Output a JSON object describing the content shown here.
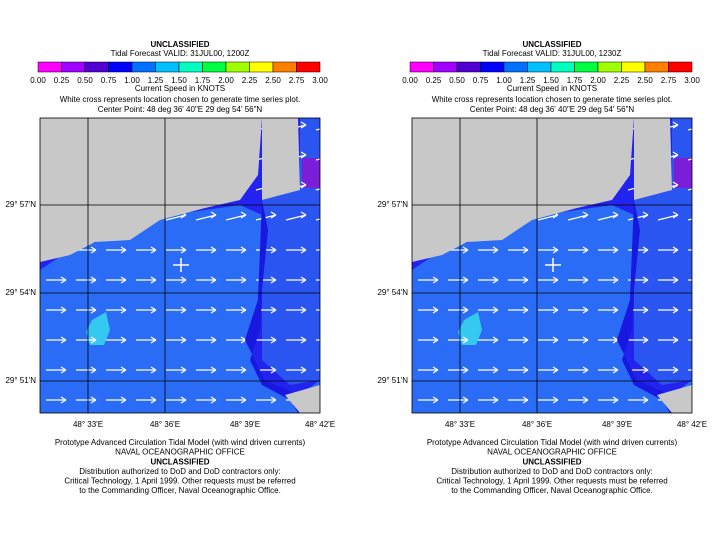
{
  "panels": [
    {
      "classification": "UNCLASSIFIED",
      "title": "Tidal Forecast VALID: 31JUL00, 1200Z",
      "colorbar": {
        "labels": [
          "0.00",
          "0.25",
          "0.50",
          "0.75",
          "1.00",
          "1.25",
          "1.50",
          "1.75",
          "2.00",
          "2.25",
          "2.50",
          "2.75",
          "3.00"
        ],
        "colors": [
          "#ff00ff",
          "#a000ff",
          "#5000d0",
          "#0000ff",
          "#0070ff",
          "#00c0ff",
          "#00ffc0",
          "#00ff40",
          "#a0ff00",
          "#ffff00",
          "#ff8000",
          "#ff0000"
        ],
        "title": "Current Speed in KNOTS"
      },
      "note": "White cross represents location chosen to generate time series plot.",
      "center_point": "Center Point: 48 deg 36' 40\"E 29 deg 54' 56\"N",
      "y_labels": [
        "29° 57'N",
        "29° 54'N",
        "29° 51'N"
      ],
      "x_labels": [
        "48° 33'E",
        "48° 36'E",
        "48° 39'E",
        "48° 42'E"
      ],
      "footer": [
        "Prototype Advanced Circulation Tidal Model (with wind driven currents)",
        "NAVAL OCEANOGRAPHIC OFFICE",
        "UNCLASSIFIED",
        "Distribution authorized to DoD and DoD contractors only:",
        "Critical Technology, 1 April 1999. Other requests must be referred",
        "to the Commanding Officer, Naval Oceanographic Office."
      ]
    },
    {
      "classification": "UNCLASSIFIED",
      "title": "Tidal Forecast VALID: 31JUL00, 1230Z",
      "colorbar": {
        "labels": [
          "0.00",
          "0.25",
          "0.50",
          "0.75",
          "1.00",
          "1.25",
          "1.50",
          "1.75",
          "2.00",
          "2.25",
          "2.50",
          "2.75",
          "3.00"
        ],
        "colors": [
          "#ff00ff",
          "#a000ff",
          "#5000d0",
          "#0000ff",
          "#0070ff",
          "#00c0ff",
          "#00ffc0",
          "#00ff40",
          "#a0ff00",
          "#ffff00",
          "#ff8000",
          "#ff0000"
        ],
        "title": "Current Speed in KNOTS"
      },
      "note": "White cross represents location chosen to generate time series plot.",
      "center_point": "Center Point: 48 deg 36' 40\"E 29 deg 54' 56\"N",
      "y_labels": [
        "29° 57'N",
        "29° 54'N",
        "29° 51'N"
      ],
      "x_labels": [
        "48° 33'E",
        "48° 36'E",
        "48° 39'E",
        "48° 42'E"
      ],
      "footer": [
        "Prototype Advanced Circulation Tidal Model (with wind driven currents)",
        "NAVAL OCEANOGRAPHIC OFFICE",
        "UNCLASSIFIED",
        "Distribution authorized to DoD and DoD contractors only:",
        "Critical Technology, 1 April 1999. Other requests must be referred",
        "to the Commanding Officer, Naval Oceanographic Office."
      ]
    }
  ]
}
